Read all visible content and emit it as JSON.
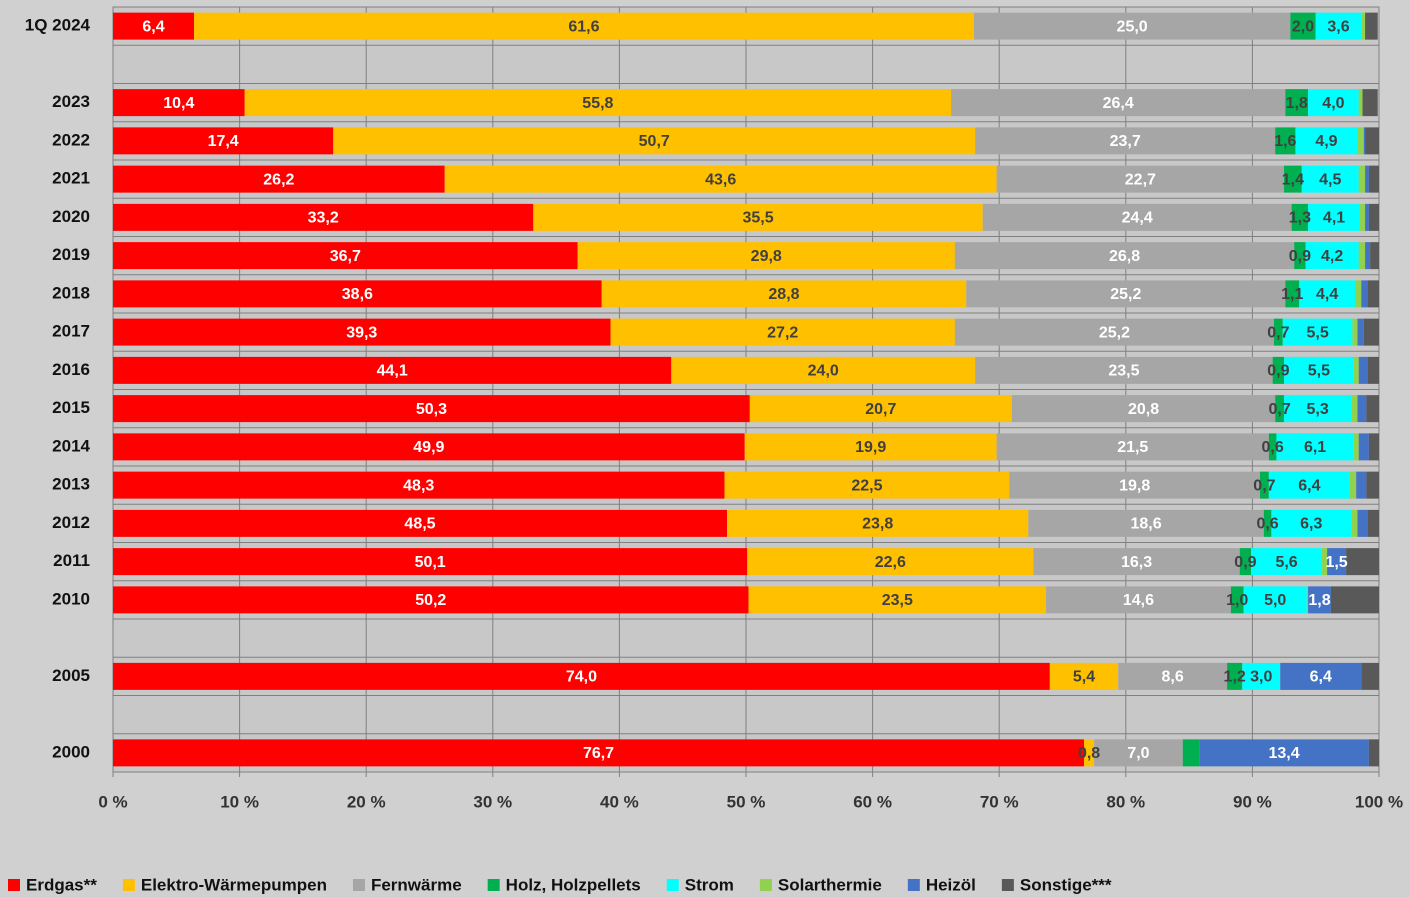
{
  "chart_data": {
    "type": "bar",
    "orientation": "horizontal",
    "stacked": true,
    "categories": [
      "1Q 2024",
      null,
      "2023",
      "2022",
      "2021",
      "2020",
      "2019",
      "2018",
      "2017",
      "2016",
      "2015",
      "2014",
      "2013",
      "2012",
      "2011",
      "2010",
      null,
      "2005",
      null,
      "2000"
    ],
    "xlim": [
      0,
      100
    ],
    "xticks": [
      {
        "value": 0,
        "label": "0 %"
      },
      {
        "value": 10,
        "label": "10 %"
      },
      {
        "value": 20,
        "label": "20 %"
      },
      {
        "value": 30,
        "label": "30 %"
      },
      {
        "value": 40,
        "label": "40 %"
      },
      {
        "value": 50,
        "label": "50 %"
      },
      {
        "value": 60,
        "label": "60 %"
      },
      {
        "value": 70,
        "label": "70 %"
      },
      {
        "value": 80,
        "label": "80 %"
      },
      {
        "value": 90,
        "label": "90 %"
      },
      {
        "value": 100,
        "label": "100 %"
      }
    ],
    "grid": true,
    "legend": "bottom",
    "series": [
      {
        "name": "Erdgas**",
        "color": "#ff0000",
        "label_color": "#ffffff",
        "values": [
          6.4,
          null,
          10.4,
          17.4,
          26.2,
          33.2,
          36.7,
          38.6,
          39.3,
          44.1,
          50.3,
          49.9,
          48.3,
          48.5,
          50.1,
          50.2,
          null,
          74.0,
          null,
          76.7
        ],
        "value_labels": [
          "6,4",
          null,
          "10,4",
          "17,4",
          "26,2",
          "33,2",
          "36,7",
          "38,6",
          "39,3",
          "44,1",
          "50,3",
          "49,9",
          "48,3",
          "48,5",
          "50,1",
          "50,2",
          null,
          "74,0",
          null,
          "76,7"
        ]
      },
      {
        "name": "Elektro-Wärmepumpen",
        "color": "#ffc000",
        "label_color": "#404040",
        "values": [
          61.6,
          null,
          55.8,
          50.7,
          43.6,
          35.5,
          29.8,
          28.8,
          27.2,
          24.0,
          20.7,
          19.9,
          22.5,
          23.8,
          22.6,
          23.5,
          null,
          5.4,
          null,
          0.8
        ],
        "value_labels": [
          "61,6",
          null,
          "55,8",
          "50,7",
          "43,6",
          "35,5",
          "29,8",
          "28,8",
          "27,2",
          "24,0",
          "20,7",
          "19,9",
          "22,5",
          "23,8",
          "22,6",
          "23,5",
          null,
          "5,4",
          null,
          "0,8"
        ]
      },
      {
        "name": "Fernwärme",
        "color": "#a6a6a6",
        "label_color": "#ffffff",
        "values": [
          25.0,
          null,
          26.4,
          23.7,
          22.7,
          24.4,
          26.8,
          25.2,
          25.2,
          23.5,
          20.8,
          21.5,
          19.8,
          18.6,
          16.3,
          14.6,
          null,
          8.6,
          null,
          7.0
        ],
        "value_labels": [
          "25,0",
          null,
          "26,4",
          "23,7",
          "22,7",
          "24,4",
          "26,8",
          "25,2",
          "25,2",
          "23,5",
          "20,8",
          "21,5",
          "19,8",
          "18,6",
          "16,3",
          "14,6",
          null,
          "8,6",
          null,
          "7,0"
        ]
      },
      {
        "name": "Holz, Holzpellets",
        "color": "#00b050",
        "label_color": "#404040",
        "values": [
          2.0,
          null,
          1.8,
          1.6,
          1.4,
          1.3,
          0.9,
          1.1,
          0.7,
          0.9,
          0.7,
          0.6,
          0.7,
          0.6,
          0.9,
          1.0,
          null,
          1.2,
          null,
          1.3
        ],
        "value_labels": [
          "2,0",
          null,
          "1,8",
          "1,6",
          "1,4",
          "1,3",
          "0,9",
          "1,1",
          "0,7",
          "0,9",
          "0,7",
          "0,6",
          "0,7",
          "0,6",
          "0,9",
          "1,0",
          null,
          "1,2",
          null,
          null
        ]
      },
      {
        "name": "Strom",
        "color": "#00ffff",
        "label_color": "#404040",
        "values": [
          3.6,
          null,
          4.0,
          4.9,
          4.5,
          4.1,
          4.2,
          4.4,
          5.5,
          5.5,
          5.3,
          6.1,
          6.4,
          6.3,
          5.6,
          5.0,
          null,
          3.0,
          null,
          0
        ],
        "value_labels": [
          "3,6",
          null,
          "4,0",
          "4,9",
          "4,5",
          "4,1",
          "4,2",
          "4,4",
          "5,5",
          "5,5",
          "5,3",
          "6,1",
          "6,4",
          "6,3",
          "5,6",
          "5,0",
          null,
          "3,0",
          null,
          null
        ]
      },
      {
        "name": "Solarthermie",
        "color": "#92d050",
        "label_color": "#404040",
        "values": [
          0.3,
          null,
          0.3,
          0.5,
          0.5,
          0.4,
          0.5,
          0.5,
          0.4,
          0.4,
          0.5,
          0.4,
          0.5,
          0.5,
          0.4,
          0.1,
          null,
          0,
          null,
          0
        ]
      },
      {
        "name": "Heizöl",
        "color": "#4472c4",
        "label_color": "#ffffff",
        "values": [
          0,
          null,
          0,
          0.1,
          0.3,
          0.3,
          0.4,
          0.5,
          0.5,
          0.7,
          0.7,
          0.8,
          0.8,
          0.8,
          1.5,
          1.8,
          null,
          6.4,
          null,
          13.4
        ],
        "value_labels": [
          null,
          null,
          null,
          null,
          null,
          null,
          null,
          null,
          null,
          null,
          null,
          null,
          null,
          null,
          "1,5",
          "1,8",
          null,
          "6,4",
          null,
          "13,4"
        ]
      },
      {
        "name": "Sonstige***",
        "color": "#595959",
        "label_color": "#ffffff",
        "values": [
          1.0,
          null,
          1.2,
          1.1,
          0.8,
          0.8,
          0.7,
          0.9,
          1.2,
          0.9,
          1.0,
          0.8,
          1.0,
          0.9,
          2.6,
          3.8,
          null,
          1.4,
          null,
          0.8
        ]
      }
    ]
  }
}
